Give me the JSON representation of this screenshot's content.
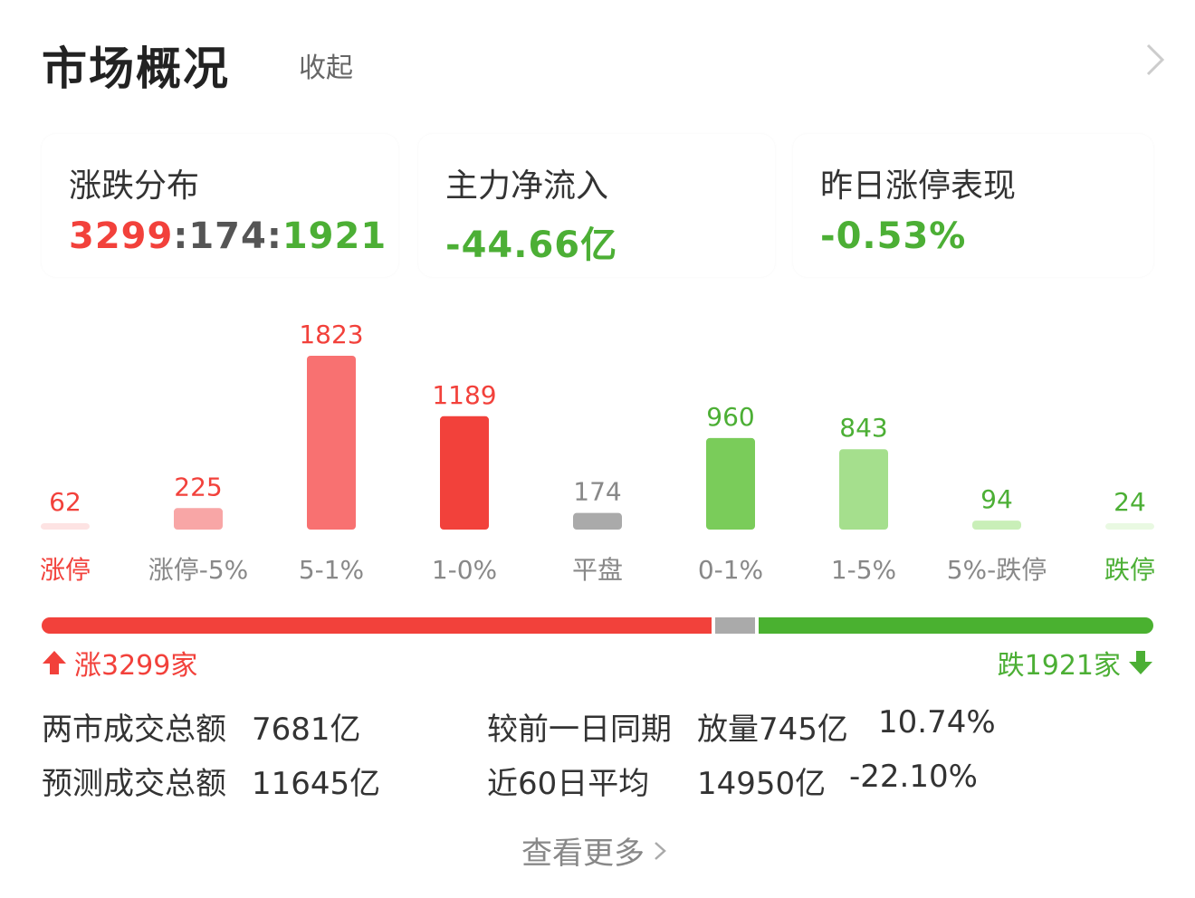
{
  "header": {
    "title": "市场概况",
    "collapse_label": "收起"
  },
  "cards": [
    {
      "label": "涨跌分布",
      "value_up": "3299",
      "sep1": ":",
      "value_flat": "174",
      "sep2": ":",
      "value_down": "1921"
    },
    {
      "label": "主力净流入",
      "value": "-44.66亿"
    },
    {
      "label": "昨日涨停表现",
      "value": "-0.53%"
    }
  ],
  "chart_data": {
    "type": "bar",
    "categories": [
      "涨停",
      "涨停-5%",
      "5-1%",
      "1-0%",
      "平盘",
      "0-1%",
      "1-5%",
      "5%-跌停",
      "跌停"
    ],
    "values": [
      62,
      225,
      1823,
      1189,
      174,
      960,
      843,
      94,
      24
    ],
    "colors": [
      "#fde3e3",
      "#f8a6a6",
      "#f87171",
      "#f2413b",
      "#aaaaaa",
      "#7acc5a",
      "#a5df8d",
      "#c9efb8",
      "#e9f9e2"
    ],
    "value_label_colors": [
      "#f2413b",
      "#f2413b",
      "#f2413b",
      "#f2413b",
      "#888888",
      "#4caf35",
      "#4caf35",
      "#4caf35",
      "#4caf35"
    ],
    "category_label_colors": [
      "#f2413b",
      "#888888",
      "#888888",
      "#888888",
      "#888888",
      "#888888",
      "#888888",
      "#888888",
      "#4caf35"
    ]
  },
  "summary": {
    "up_label": "涨3299家",
    "down_label": "跌1921家"
  },
  "stats": {
    "total_label": "两市成交总额",
    "total_value": "7681亿",
    "forecast_label": "预测成交总额",
    "forecast_value": "11645亿",
    "compare_label": "较前一日同期",
    "compare_value": "放量745亿",
    "compare_pct": "10.74%",
    "avg_label": "近60日平均",
    "avg_value": "14950亿",
    "avg_pct": "-22.10%"
  },
  "footer": {
    "more_label": "查看更多"
  },
  "colors": {
    "up": "#f2413b",
    "down": "#4caf35",
    "flat": "#aaaaaa"
  }
}
